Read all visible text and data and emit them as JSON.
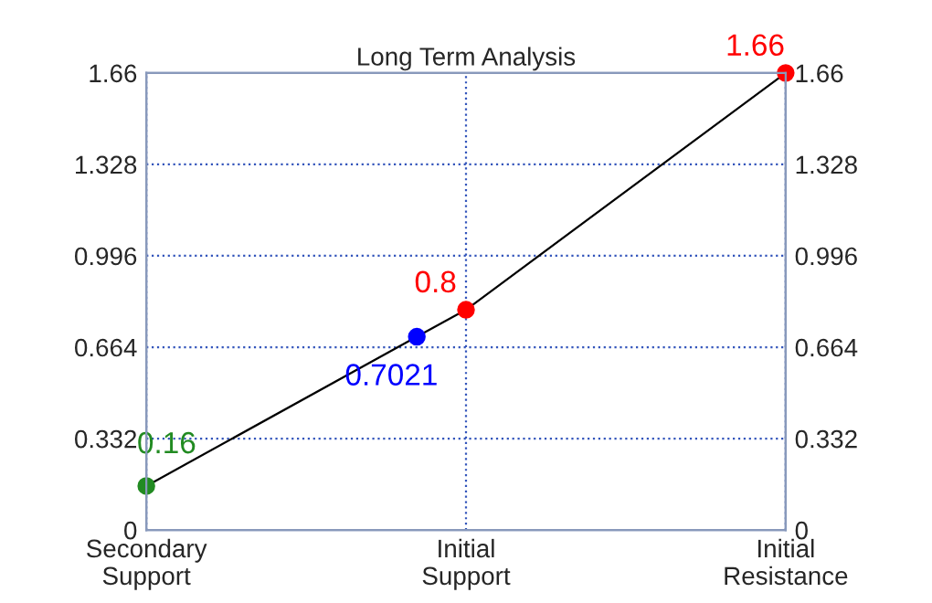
{
  "chart_data": {
    "type": "line",
    "title": "Long Term Analysis",
    "categories": [
      "Secondary\nSupport",
      null,
      null,
      null,
      null,
      null,
      null,
      null,
      null,
      null,
      null,
      null,
      null,
      "Initial\nSupport",
      null,
      null,
      null,
      null,
      null,
      null,
      null,
      null,
      null,
      null,
      null,
      null,
      "Initial\nResistance"
    ],
    "series": [
      {
        "color": "#000000",
        "colors": [
          "#228b22",
          null,
          null,
          null,
          null,
          null,
          null,
          null,
          null,
          null,
          null,
          "#0000ff",
          null,
          "#ff0000",
          null,
          null,
          null,
          null,
          null,
          null,
          null,
          null,
          null,
          null,
          null,
          null,
          "#ff0000"
        ],
        "values": [
          0.16,
          null,
          null,
          null,
          null,
          null,
          null,
          null,
          null,
          null,
          null,
          0.7021,
          null,
          0.8,
          null,
          null,
          null,
          null,
          null,
          null,
          null,
          null,
          null,
          null,
          null,
          null,
          1.66
        ]
      }
    ],
    "ylim": [
      0,
      1.66
    ],
    "yticks": [
      0,
      0.332,
      0.664,
      0.996,
      1.328,
      1.66
    ],
    "y2lim": [
      0,
      1.66
    ],
    "y2ticks": [
      0,
      0.332,
      0.664,
      0.996,
      1.328,
      1.66
    ],
    "grid": true,
    "marker": "circle",
    "line_style": "solid",
    "data_labels": true
  }
}
